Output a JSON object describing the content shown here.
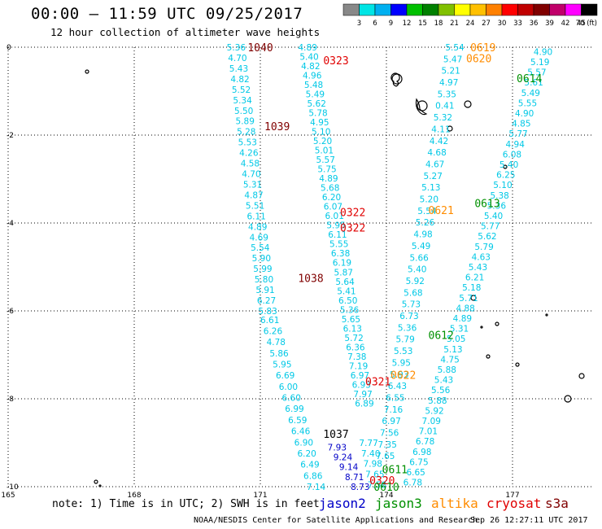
{
  "header": {
    "title": "00:00 – 11:59 UTC 09/25/2017",
    "subtitle": "12 hour collection of altimeter wave heights"
  },
  "color_scale": {
    "labels": [
      "3",
      "6",
      "9",
      "12",
      "15",
      "18",
      "21",
      "24",
      "27",
      "30",
      "33",
      "36",
      "39",
      "42",
      "45",
      "70 (ft)"
    ],
    "colors": [
      "#888888",
      "#00e5e5",
      "#00b0f0",
      "#0000ff",
      "#00c000",
      "#008000",
      "#80c000",
      "#ffff00",
      "#ffc000",
      "#ff8000",
      "#ff0000",
      "#c00000",
      "#800000",
      "#c0006a",
      "#ff00ff",
      "#000000"
    ]
  },
  "axes": {
    "x_ticks": [
      "165",
      "168",
      "171",
      "174",
      "177"
    ],
    "y_ticks": [
      "0",
      "-2",
      "-4",
      "-6",
      "-8",
      "-10"
    ]
  },
  "satellites": [
    {
      "name": "jason2",
      "color": "#0000c8"
    },
    {
      "name": "jason3",
      "color": "#009000"
    },
    {
      "name": "altika",
      "color": "#ff8c00"
    },
    {
      "name": "cryosat",
      "color": "#e00000"
    },
    {
      "name": "s3a",
      "color": "#800000"
    }
  ],
  "pass_labels": [
    {
      "text": "1040",
      "color": "#800000",
      "x": 171.0,
      "y": 0.0
    },
    {
      "text": "0323",
      "color": "#e00000",
      "x": 172.8,
      "y": -0.3
    },
    {
      "text": "0619",
      "color": "#ff8c00",
      "x": 176.3,
      "y": 0.0
    },
    {
      "text": "0620",
      "color": "#ff8c00",
      "x": 176.2,
      "y": -0.25
    },
    {
      "text": "0614",
      "color": "#009000",
      "x": 177.4,
      "y": -0.7
    },
    {
      "text": "1039",
      "color": "#800000",
      "x": 171.4,
      "y": -1.8
    },
    {
      "text": "0322",
      "color": "#e00000",
      "x": 173.2,
      "y": -3.75
    },
    {
      "text": "0322",
      "color": "#e00000",
      "x": 173.2,
      "y": -4.1
    },
    {
      "text": "0621",
      "color": "#ff8c00",
      "x": 175.3,
      "y": -3.7
    },
    {
      "text": "0613",
      "color": "#009000",
      "x": 176.4,
      "y": -3.55
    },
    {
      "text": "1038",
      "color": "#800000",
      "x": 172.2,
      "y": -5.25
    },
    {
      "text": "0612",
      "color": "#009000",
      "x": 175.3,
      "y": -6.55
    },
    {
      "text": "0622",
      "color": "#ff8c00",
      "x": 174.4,
      "y": -7.45
    },
    {
      "text": "0321",
      "color": "#e00000",
      "x": 173.8,
      "y": -7.6
    },
    {
      "text": "1037",
      "color": "#000000",
      "x": 172.8,
      "y": -8.8
    },
    {
      "text": "0611",
      "color": "#009000",
      "x": 174.2,
      "y": -9.6
    },
    {
      "text": "0320",
      "color": "#e00000",
      "x": 173.9,
      "y": -9.85
    },
    {
      "text": "0610",
      "color": "#009000",
      "x": 174.0,
      "y": -10.0
    }
  ],
  "tracks": [
    {
      "lon0": 170.2,
      "lat0": 0.0,
      "lon1": 170.95,
      "lat1": -6.0,
      "color": "#00c8e6",
      "values": [
        "5.36",
        "4.70",
        "5.43",
        "4.82",
        "5.52",
        "5.34",
        "5.50",
        "5.89",
        "5.28",
        "5.53",
        "4.26",
        "4.58",
        "4.70",
        "5.31",
        "4.87",
        "5.51",
        "6.11",
        "4.89",
        "4.69",
        "5.54",
        "5.90",
        "5.99",
        "5.80",
        "5.91",
        "6.27",
        "5.83"
      ]
    },
    {
      "lon0": 171.0,
      "lat0": -6.2,
      "lon1": 172.1,
      "lat1": -10.0,
      "color": "#00c8e6",
      "values": [
        "6.61",
        "6.26",
        "4.78",
        "5.86",
        "5.95",
        "6.69",
        "6.00",
        "6.60",
        "6.99",
        "6.59",
        "6.46",
        "6.90",
        "6.20",
        "6.49",
        "6.86",
        "7.14"
      ]
    },
    {
      "lon0": 171.9,
      "lat0": 0.0,
      "lon1": 173.25,
      "lat1": -8.1,
      "color": "#00c8e6",
      "values": [
        "4.89",
        "5.40",
        "4.82",
        "4.96",
        "5.48",
        "5.49",
        "5.62",
        "5.78",
        "4.95",
        "5.10",
        "5.20",
        "5.01",
        "5.57",
        "5.75",
        "4.89",
        "5.68",
        "6.20",
        "6.07",
        "6.01",
        "5.95",
        "6.11",
        "5.55",
        "6.38",
        "6.19",
        "5.87",
        "5.64",
        "5.41",
        "6.50",
        "5.36",
        "5.65",
        "6.13",
        "5.72",
        "6.36",
        "7.38",
        "7.19",
        "6.97",
        "6.93",
        "7.97",
        "6.89"
      ]
    },
    {
      "lon0": 175.4,
      "lat0": 0.0,
      "lon1": 173.75,
      "lat1": -9.3,
      "color": "#00c8e6",
      "values": [
        "5.54",
        "5.47",
        "5.21",
        "4.97",
        "5.35",
        "0.41",
        "5.32",
        "4.11",
        "4.42",
        "4.68",
        "4.67",
        "5.27",
        "5.13",
        "5.20",
        "5.54",
        "5.26",
        "4.98",
        "5.49",
        "5.66",
        "5.40",
        "5.92",
        "5.68",
        "5.73",
        "6.73",
        "5.36",
        "5.79",
        "5.53",
        "5.95",
        "5.93",
        "6.43",
        "6.55",
        "7.16",
        "6.97",
        "7.56",
        "7.35",
        "7.65"
      ]
    },
    {
      "lon0": 177.5,
      "lat0": -0.1,
      "lon1": 174.4,
      "lat1": -9.9,
      "color": "#00c8e6",
      "values": [
        "4.90",
        "5.19",
        "5.57",
        "5.61",
        "5.49",
        "5.55",
        "4.90",
        "4.85",
        "5.77",
        "4.94",
        "6.08",
        "5.40",
        "6.25",
        "5.10",
        "5.38",
        "5.36",
        "5.40",
        "5.77",
        "5.62",
        "5.79",
        "4.63",
        "5.43",
        "6.21",
        "5.18",
        "5.71",
        "4.88",
        "4.89",
        "5.31",
        "5.05",
        "5.13",
        "4.75",
        "5.88",
        "5.43",
        "5.56",
        "5.88",
        "5.92",
        "7.09",
        "7.01",
        "6.78",
        "6.98",
        "6.75",
        "6.65",
        "6.78"
      ]
    },
    {
      "lon0": 172.6,
      "lat0": -9.1,
      "lon1": 173.15,
      "lat1": -10.0,
      "color": "#0000c8",
      "values": [
        "7.93",
        "9.24",
        "9.14",
        "8.71",
        "8.73"
      ]
    },
    {
      "lon0": 173.35,
      "lat0": -9.0,
      "lon1": 173.55,
      "lat1": -9.95,
      "color": "#00c8e6",
      "values": [
        "7.77",
        "7.40",
        "7.98",
        "7.65",
        "7.58"
      ]
    }
  ],
  "note": "note: 1) Time is in UTC; 2) SWH is in feet",
  "footer_left": "NOAA/NESDIS Center for Satellite Applications and Research",
  "footer_right": "Sep 26 12:27:11 UTC 2017"
}
